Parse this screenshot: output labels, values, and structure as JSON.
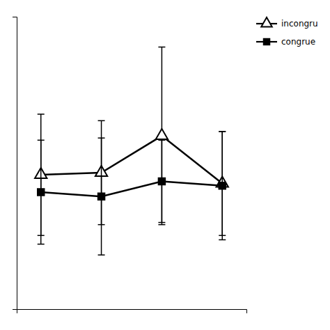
{
  "chart_data": {
    "type": "line",
    "x": [
      1,
      2,
      3,
      4
    ],
    "series": [
      {
        "name": "incongru",
        "color": "#000000",
        "marker": "triangle-open",
        "values": [
          0.62,
          0.63,
          0.8,
          0.58
        ],
        "error": [
          0.28,
          0.24,
          0.41,
          0.24
        ]
      },
      {
        "name": "congrue",
        "color": "#000000",
        "marker": "square",
        "values": [
          0.54,
          0.52,
          0.59,
          0.57
        ],
        "error": [
          0.24,
          0.27,
          0.19,
          0.25
        ]
      }
    ],
    "xlim": [
      0.6,
      4.4
    ],
    "ylim": [
      0.0,
      1.35
    ],
    "xticks": [],
    "yticks": [],
    "tick_labels": false,
    "grid": false,
    "legend": "upper right"
  }
}
